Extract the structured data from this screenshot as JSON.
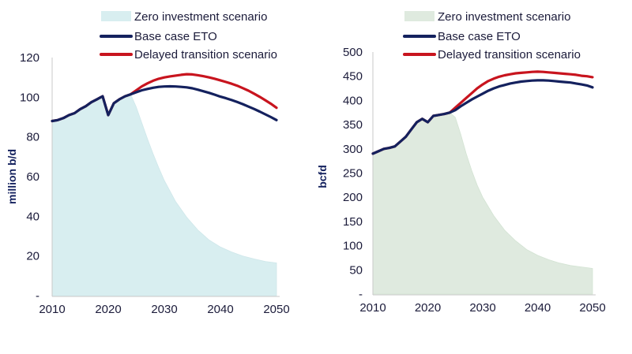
{
  "chart_data": [
    {
      "type": "area+line",
      "title": "",
      "xlabel": "",
      "ylabel": "million b/d",
      "xlim": [
        2010,
        2050
      ],
      "ylim": [
        0,
        120
      ],
      "x_ticks": [
        2010,
        2020,
        2030,
        2040,
        2050
      ],
      "y_ticks": [
        0,
        20,
        40,
        60,
        80,
        100,
        120
      ],
      "y_tick_labels": [
        "-",
        "20",
        "40",
        "60",
        "80",
        "100",
        "120"
      ],
      "legend": [
        {
          "label": "Zero investment scenario",
          "color": "#d8eef0",
          "kind": "area"
        },
        {
          "label": "Base case ETO",
          "color": "#14215e",
          "kind": "line"
        },
        {
          "label": "Delayed transition scenario",
          "color": "#c8141e",
          "kind": "line"
        }
      ],
      "series": [
        {
          "name": "Zero investment scenario",
          "x": [
            2010,
            2011,
            2012,
            2013,
            2014,
            2015,
            2016,
            2017,
            2018,
            2019,
            2020,
            2021,
            2022,
            2023,
            2024,
            2025,
            2026,
            2027,
            2028,
            2029,
            2030,
            2032,
            2034,
            2036,
            2038,
            2040,
            2042,
            2044,
            2046,
            2048,
            2050
          ],
          "values": [
            88,
            88.5,
            89.5,
            91,
            92,
            94,
            95.5,
            97.5,
            99,
            100.5,
            91,
            97,
            99,
            100.5,
            101.5,
            95,
            87,
            79,
            71.5,
            64.5,
            58,
            47.5,
            39.5,
            33,
            28,
            24.5,
            22,
            20,
            18.5,
            17.2,
            16.5
          ]
        },
        {
          "name": "Base case ETO",
          "x": [
            2010,
            2011,
            2012,
            2013,
            2014,
            2015,
            2016,
            2017,
            2018,
            2019,
            2020,
            2021,
            2022,
            2023,
            2024,
            2025,
            2026,
            2027,
            2028,
            2029,
            2030,
            2031,
            2032,
            2033,
            2034,
            2035,
            2036,
            2037,
            2038,
            2039,
            2040,
            2041,
            2042,
            2043,
            2044,
            2045,
            2046,
            2047,
            2048,
            2049,
            2050
          ],
          "values": [
            88,
            88.5,
            89.5,
            91,
            92,
            94,
            95.5,
            97.5,
            99,
            100.5,
            91,
            97,
            99,
            100.5,
            101.5,
            102.5,
            103.5,
            104.2,
            104.8,
            105.2,
            105.4,
            105.5,
            105.4,
            105.2,
            105,
            104.5,
            103.8,
            103,
            102.2,
            101.3,
            100.3,
            99.5,
            98.6,
            97.6,
            96.5,
            95.3,
            94.1,
            92.8,
            91.4,
            90,
            88.5
          ]
        },
        {
          "name": "Delayed transition scenario",
          "x": [
            2010,
            2011,
            2012,
            2013,
            2014,
            2015,
            2016,
            2017,
            2018,
            2019,
            2020,
            2021,
            2022,
            2023,
            2024,
            2025,
            2026,
            2027,
            2028,
            2029,
            2030,
            2031,
            2032,
            2033,
            2034,
            2035,
            2036,
            2037,
            2038,
            2039,
            2040,
            2041,
            2042,
            2043,
            2044,
            2045,
            2046,
            2047,
            2048,
            2049,
            2050
          ],
          "values": [
            88,
            88.5,
            89.5,
            91,
            92,
            94,
            95.5,
            97.5,
            99,
            100.5,
            91,
            97,
            99,
            100.5,
            101.5,
            103.5,
            105.5,
            107,
            108.3,
            109.3,
            110,
            110.5,
            110.9,
            111.3,
            111.6,
            111.5,
            111.1,
            110.6,
            110,
            109.3,
            108.5,
            107.7,
            106.8,
            105.8,
            104.6,
            103.3,
            101.8,
            100.2,
            98.5,
            96.7,
            94.7
          ]
        }
      ]
    },
    {
      "type": "area+line",
      "title": "",
      "xlabel": "",
      "ylabel": "bcfd",
      "xlim": [
        2010,
        2050
      ],
      "ylim": [
        0,
        500
      ],
      "x_ticks": [
        2010,
        2020,
        2030,
        2040,
        2050
      ],
      "y_ticks": [
        0,
        50,
        100,
        150,
        200,
        250,
        300,
        350,
        400,
        450,
        500
      ],
      "y_tick_labels": [
        "-",
        "50",
        "100",
        "150",
        "200",
        "250",
        "300",
        "350",
        "400",
        "450",
        "500"
      ],
      "legend": [
        {
          "label": "Zero investment scenario",
          "color": "#dfeadf",
          "kind": "area"
        },
        {
          "label": "Base case ETO",
          "color": "#14215e",
          "kind": "line"
        },
        {
          "label": "Delayed transition scenario",
          "color": "#c8141e",
          "kind": "line"
        }
      ],
      "series": [
        {
          "name": "Zero investment scenario",
          "x": [
            2010,
            2011,
            2012,
            2013,
            2014,
            2015,
            2016,
            2017,
            2018,
            2019,
            2020,
            2021,
            2022,
            2023,
            2024,
            2025,
            2026,
            2027,
            2028,
            2029,
            2030,
            2032,
            2034,
            2036,
            2038,
            2040,
            2042,
            2044,
            2046,
            2048,
            2050
          ],
          "values": [
            290,
            295,
            300,
            302,
            305,
            315,
            325,
            340,
            355,
            362,
            355,
            368,
            370,
            372,
            375,
            365,
            330,
            290,
            255,
            225,
            200,
            162,
            132,
            110,
            92,
            80,
            71,
            64,
            59,
            56,
            53
          ]
        },
        {
          "name": "Base case ETO",
          "x": [
            2010,
            2011,
            2012,
            2013,
            2014,
            2015,
            2016,
            2017,
            2018,
            2019,
            2020,
            2021,
            2022,
            2023,
            2024,
            2025,
            2026,
            2027,
            2028,
            2029,
            2030,
            2031,
            2032,
            2033,
            2034,
            2035,
            2036,
            2037,
            2038,
            2039,
            2040,
            2041,
            2042,
            2043,
            2044,
            2045,
            2046,
            2047,
            2048,
            2049,
            2050
          ],
          "values": [
            290,
            295,
            300,
            302,
            305,
            315,
            325,
            340,
            355,
            362,
            355,
            368,
            370,
            372,
            375,
            380,
            388,
            395,
            402,
            408,
            414,
            420,
            425,
            429,
            432,
            435,
            437,
            439,
            440,
            441,
            441.5,
            441.5,
            441,
            440,
            439,
            438,
            437,
            435,
            433,
            431,
            427
          ]
        },
        {
          "name": "Delayed transition scenario",
          "x": [
            2010,
            2011,
            2012,
            2013,
            2014,
            2015,
            2016,
            2017,
            2018,
            2019,
            2020,
            2021,
            2022,
            2023,
            2024,
            2025,
            2026,
            2027,
            2028,
            2029,
            2030,
            2031,
            2032,
            2033,
            2034,
            2035,
            2036,
            2037,
            2038,
            2039,
            2040,
            2041,
            2042,
            2043,
            2044,
            2045,
            2046,
            2047,
            2048,
            2049,
            2050
          ],
          "values": [
            290,
            295,
            300,
            302,
            305,
            315,
            325,
            340,
            355,
            362,
            355,
            368,
            370,
            372,
            375,
            385,
            395,
            405,
            415,
            425,
            433,
            440,
            445,
            449,
            452,
            454,
            456,
            457,
            458,
            459,
            459.5,
            459,
            458,
            457,
            456,
            455,
            454,
            453,
            451,
            450,
            448
          ]
        }
      ]
    }
  ]
}
